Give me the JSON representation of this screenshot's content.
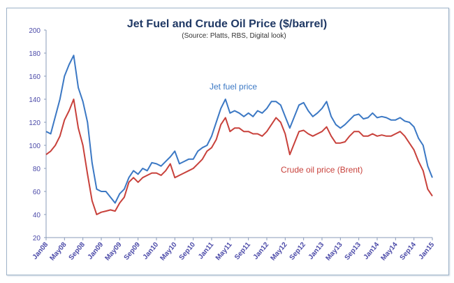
{
  "chart_data": {
    "type": "line",
    "title": "Jet Fuel and Crude Oil Price ($/barrel)",
    "subtitle": "(Source: Platts, RBS, Digital look)",
    "xlabel": "",
    "ylabel": "",
    "ylim": [
      20,
      200
    ],
    "yticks": [
      20,
      40,
      60,
      80,
      100,
      120,
      140,
      160,
      180,
      200
    ],
    "xtick_labels": [
      "Jan08",
      "May08",
      "Sep08",
      "Jan09",
      "May09",
      "Sep09",
      "Jan10",
      "May10",
      "Sep10",
      "Jan11",
      "May11",
      "Sep11",
      "Jan12",
      "May12",
      "Sep12",
      "Jan13",
      "May13",
      "Sep13",
      "Jan14",
      "May14",
      "Sep14",
      "Jan15"
    ],
    "x_range": [
      "Jan08",
      "Jan15"
    ],
    "x_frequency": "monthly",
    "grid": false,
    "series": [
      {
        "name": "Jet fuel price",
        "color": "#3b78c4",
        "values": [
          112,
          110,
          125,
          140,
          160,
          170,
          178,
          150,
          138,
          120,
          85,
          62,
          60,
          60,
          55,
          50,
          58,
          62,
          72,
          78,
          75,
          80,
          78,
          85,
          84,
          82,
          86,
          90,
          95,
          84,
          86,
          88,
          88,
          95,
          98,
          100,
          108,
          120,
          132,
          140,
          128,
          130,
          128,
          125,
          128,
          125,
          130,
          128,
          132,
          138,
          138,
          135,
          125,
          115,
          125,
          135,
          137,
          130,
          125,
          128,
          132,
          138,
          125,
          118,
          115,
          118,
          122,
          126,
          127,
          123,
          124,
          128,
          124,
          125,
          124,
          122,
          122,
          124,
          121,
          120,
          116,
          106,
          100,
          82,
          72
        ]
      },
      {
        "name": "Crude oil price (Brent)",
        "color": "#c8413b",
        "values": [
          92,
          95,
          100,
          108,
          122,
          130,
          140,
          115,
          100,
          75,
          52,
          40,
          42,
          43,
          44,
          43,
          50,
          55,
          68,
          72,
          68,
          72,
          74,
          76,
          76,
          74,
          78,
          84,
          72,
          74,
          76,
          78,
          80,
          84,
          88,
          95,
          98,
          105,
          118,
          124,
          112,
          115,
          115,
          112,
          112,
          110,
          110,
          108,
          112,
          118,
          124,
          120,
          110,
          92,
          102,
          112,
          113,
          110,
          108,
          110,
          112,
          116,
          108,
          102,
          102,
          103,
          108,
          112,
          112,
          108,
          108,
          110,
          108,
          109,
          108,
          108,
          110,
          112,
          108,
          102,
          96,
          86,
          78,
          62,
          56
        ]
      }
    ]
  }
}
